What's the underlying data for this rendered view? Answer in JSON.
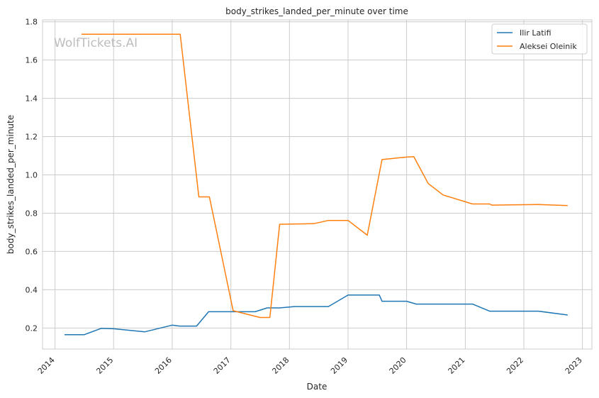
{
  "chart_data": {
    "type": "line",
    "title": "body_strikes_landed_per_minute over time",
    "xlabel": "Date",
    "ylabel": "body_strikes_landed_per_minute",
    "watermark": "WolfTickets.AI",
    "x_ticks": [
      "2014",
      "2015",
      "2016",
      "2017",
      "2018",
      "2019",
      "2020",
      "2021",
      "2022",
      "2023"
    ],
    "y_ticks": [
      "0.2",
      "0.4",
      "0.6",
      "0.8",
      "1.0",
      "1.2",
      "1.4",
      "1.6",
      "1.8"
    ],
    "xlim": [
      "2013-10-15",
      "2023-03-01"
    ],
    "ylim": [
      0.09,
      1.81
    ],
    "grid": true,
    "legend_position": "top-right",
    "colors": {
      "Ilir Latifi": "#1f77b4",
      "Aleksei Oleinik": "#ff7f0e"
    },
    "series": [
      {
        "name": "Ilir Latifi",
        "points": [
          [
            "2014-03-01",
            0.165
          ],
          [
            "2014-07-01",
            0.165
          ],
          [
            "2014-10-15",
            0.198
          ],
          [
            "2015-01-01",
            0.196
          ],
          [
            "2015-07-15",
            0.18
          ],
          [
            "2016-01-01",
            0.215
          ],
          [
            "2016-02-15",
            0.21
          ],
          [
            "2016-06-01",
            0.21
          ],
          [
            "2016-08-15",
            0.285
          ],
          [
            "2017-06-01",
            0.285
          ],
          [
            "2017-08-15",
            0.305
          ],
          [
            "2017-11-01",
            0.305
          ],
          [
            "2018-02-01",
            0.312
          ],
          [
            "2018-09-01",
            0.312
          ],
          [
            "2019-01-01",
            0.372
          ],
          [
            "2019-07-15",
            0.372
          ],
          [
            "2019-08-01",
            0.34
          ],
          [
            "2020-01-01",
            0.34
          ],
          [
            "2020-03-01",
            0.325
          ],
          [
            "2021-02-15",
            0.325
          ],
          [
            "2021-06-01",
            0.288
          ],
          [
            "2022-04-01",
            0.288
          ],
          [
            "2022-10-01",
            0.268
          ]
        ]
      },
      {
        "name": "Aleksei Oleinik",
        "points": [
          [
            "2014-06-15",
            1.735
          ],
          [
            "2016-02-20",
            1.735
          ],
          [
            "2016-06-15",
            0.885
          ],
          [
            "2016-08-20",
            0.885
          ],
          [
            "2017-01-15",
            0.29
          ],
          [
            "2017-07-01",
            0.255
          ],
          [
            "2017-09-01",
            0.255
          ],
          [
            "2017-11-01",
            0.742
          ],
          [
            "2018-06-01",
            0.745
          ],
          [
            "2018-09-01",
            0.762
          ],
          [
            "2019-01-01",
            0.762
          ],
          [
            "2019-05-01",
            0.685
          ],
          [
            "2019-08-01",
            1.08
          ],
          [
            "2020-01-01",
            1.093
          ],
          [
            "2020-02-15",
            1.095
          ],
          [
            "2020-05-15",
            0.955
          ],
          [
            "2020-08-15",
            0.895
          ],
          [
            "2021-02-15",
            0.848
          ],
          [
            "2021-06-01",
            0.848
          ],
          [
            "2021-06-15",
            0.842
          ],
          [
            "2022-04-01",
            0.845
          ],
          [
            "2022-10-01",
            0.84
          ]
        ]
      }
    ]
  }
}
